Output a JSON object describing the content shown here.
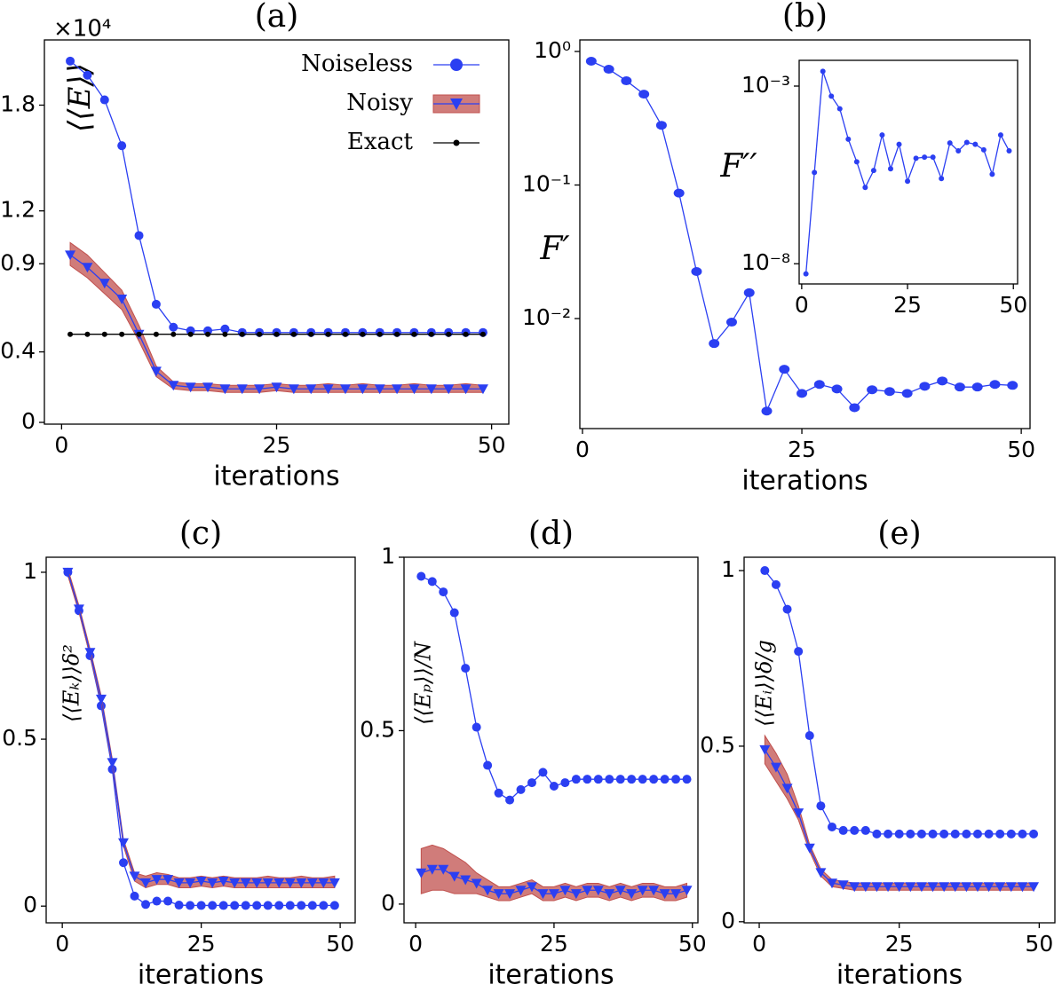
{
  "chart_data": [
    {
      "type": "line",
      "title": "(a)",
      "multiplier": "×10⁴",
      "ylabel": "⟨⟨E⟩⟩",
      "xlabel": "iterations",
      "x": [
        1,
        3,
        5,
        7,
        9,
        11,
        13,
        15,
        17,
        19,
        21,
        23,
        25,
        27,
        29,
        31,
        33,
        35,
        37,
        39,
        41,
        43,
        45,
        47,
        49
      ],
      "xlim": [
        -2,
        52
      ],
      "ylim": [
        -0.01,
        2.17
      ],
      "xticks": [
        0,
        25,
        50
      ],
      "yticks": [
        0,
        0.4,
        0.9,
        1.2,
        1.8
      ],
      "legend": "upper right",
      "series": [
        {
          "name": "Noiseless",
          "color": "#2b3ff2",
          "marker": "o",
          "values": [
            2.05,
            1.97,
            1.83,
            1.57,
            1.06,
            0.67,
            0.54,
            0.52,
            0.52,
            0.53,
            0.51,
            0.51,
            0.51,
            0.51,
            0.51,
            0.51,
            0.51,
            0.51,
            0.51,
            0.51,
            0.51,
            0.51,
            0.51,
            0.51,
            0.51
          ]
        },
        {
          "name": "Noisy",
          "color": "#2b3ff2",
          "marker": "v",
          "band_color": "#c0504d",
          "values": [
            0.95,
            0.88,
            0.79,
            0.7,
            0.5,
            0.29,
            0.21,
            0.2,
            0.2,
            0.19,
            0.19,
            0.19,
            0.2,
            0.19,
            0.19,
            0.19,
            0.19,
            0.19,
            0.19,
            0.19,
            0.19,
            0.19,
            0.19,
            0.19,
            0.19
          ],
          "lower": [
            0.89,
            0.82,
            0.73,
            0.64,
            0.46,
            0.26,
            0.19,
            0.18,
            0.18,
            0.17,
            0.17,
            0.17,
            0.18,
            0.17,
            0.17,
            0.17,
            0.17,
            0.17,
            0.17,
            0.17,
            0.17,
            0.17,
            0.17,
            0.17,
            0.17
          ],
          "upper": [
            1.02,
            0.95,
            0.85,
            0.75,
            0.55,
            0.32,
            0.23,
            0.22,
            0.22,
            0.21,
            0.21,
            0.21,
            0.22,
            0.21,
            0.21,
            0.22,
            0.21,
            0.22,
            0.21,
            0.21,
            0.22,
            0.21,
            0.21,
            0.22,
            0.21
          ]
        },
        {
          "name": "Exact",
          "color": "#000000",
          "marker": ".",
          "values": [
            0.5,
            0.5,
            0.5,
            0.5,
            0.5,
            0.5,
            0.5,
            0.5,
            0.5,
            0.5,
            0.5,
            0.5,
            0.5,
            0.5,
            0.5,
            0.5,
            0.5,
            0.5,
            0.5,
            0.5,
            0.5,
            0.5,
            0.5,
            0.5,
            0.5
          ]
        }
      ]
    },
    {
      "type": "line",
      "title": "(b)",
      "ylabel": "F′",
      "xlabel": "iterations",
      "yscale": "log",
      "x": [
        1,
        3,
        5,
        7,
        9,
        11,
        13,
        15,
        17,
        19,
        21,
        23,
        25,
        27,
        29,
        31,
        33,
        35,
        37,
        39,
        41,
        43,
        45,
        47,
        49
      ],
      "xlim": [
        -0.3,
        51
      ],
      "ylim": [
        0.0015,
        1.22
      ],
      "xticks": [
        0,
        25,
        50
      ],
      "yticks": [
        {
          "value": 1,
          "label": "10⁰"
        },
        {
          "value": 0.1,
          "label": "10⁻¹"
        },
        {
          "value": 0.01,
          "label": "10⁻²"
        }
      ],
      "series": [
        {
          "color": "#2b3ff2",
          "marker": "O",
          "values": [
            0.845,
            0.736,
            0.603,
            0.479,
            0.28,
            0.087,
            0.0225,
            0.0065,
            0.0094,
            0.0156,
            0.00203,
            0.00417,
            0.00275,
            0.00321,
            0.00297,
            0.00215,
            0.00293,
            0.00284,
            0.00275,
            0.00311,
            0.00341,
            0.00307,
            0.00307,
            0.00321,
            0.00316
          ]
        }
      ]
    },
    {
      "type": "line",
      "title": "(c)",
      "ylabel": "⟨⟨Eₖ⟩⟩δ²",
      "xlabel": "iterations",
      "x": [
        1,
        3,
        5,
        7,
        9,
        11,
        13,
        15,
        17,
        19,
        21,
        23,
        25,
        27,
        29,
        31,
        33,
        35,
        37,
        39,
        41,
        43,
        45,
        47,
        49
      ],
      "xlim": [
        -2.9,
        52.7
      ],
      "ylim": [
        -0.05,
        1.045
      ],
      "xticks": [
        0,
        25,
        50
      ],
      "yticks": [
        0,
        0.5,
        1.0
      ],
      "series": [
        {
          "color": "#2b3ff2",
          "marker": "o",
          "values": [
            1.0,
            0.885,
            0.75,
            0.6,
            0.41,
            0.13,
            0.03,
            0.005,
            0.015,
            0.015,
            0.003,
            0.002,
            0.002,
            0.002,
            0.002,
            0.002,
            0.002,
            0.002,
            0.002,
            0.002,
            0.002,
            0.002,
            0.002,
            0.002,
            0.002
          ]
        },
        {
          "color": "#2b3ff2",
          "marker": "v",
          "band_color": "#c0504d",
          "values": [
            1.0,
            0.89,
            0.76,
            0.62,
            0.43,
            0.19,
            0.09,
            0.07,
            0.08,
            0.08,
            0.07,
            0.07,
            0.075,
            0.07,
            0.075,
            0.07,
            0.07,
            0.07,
            0.07,
            0.07,
            0.07,
            0.07,
            0.07,
            0.07,
            0.07
          ],
          "lower": [
            0.99,
            0.88,
            0.75,
            0.61,
            0.42,
            0.18,
            0.075,
            0.055,
            0.065,
            0.065,
            0.055,
            0.055,
            0.06,
            0.055,
            0.06,
            0.055,
            0.055,
            0.055,
            0.055,
            0.055,
            0.055,
            0.055,
            0.055,
            0.055,
            0.055
          ],
          "upper": [
            1.01,
            0.9,
            0.77,
            0.63,
            0.44,
            0.2,
            0.1,
            0.09,
            0.1,
            0.095,
            0.085,
            0.085,
            0.09,
            0.085,
            0.09,
            0.085,
            0.085,
            0.085,
            0.09,
            0.085,
            0.085,
            0.09,
            0.085,
            0.085,
            0.09
          ]
        }
      ]
    },
    {
      "type": "line",
      "title": "(d)",
      "ylabel": "⟨⟨Eₚ⟩⟩/N",
      "xlabel": "iterations",
      "x": [
        1,
        3,
        5,
        7,
        9,
        11,
        13,
        15,
        17,
        19,
        21,
        23,
        25,
        27,
        29,
        31,
        33,
        35,
        37,
        39,
        41,
        43,
        45,
        47,
        49
      ],
      "xlim": [
        -2.1,
        51
      ],
      "ylim": [
        -0.054,
        1.0
      ],
      "xticks": [
        0,
        25,
        50
      ],
      "yticks": [
        0,
        0.5,
        1.0
      ],
      "series": [
        {
          "color": "#2b3ff2",
          "marker": "o",
          "values": [
            0.945,
            0.93,
            0.9,
            0.84,
            0.68,
            0.51,
            0.4,
            0.32,
            0.3,
            0.33,
            0.35,
            0.38,
            0.34,
            0.35,
            0.36,
            0.36,
            0.36,
            0.36,
            0.36,
            0.36,
            0.36,
            0.36,
            0.36,
            0.36,
            0.36
          ]
        },
        {
          "color": "#2b3ff2",
          "marker": "v",
          "band_color": "#c0504d",
          "values": [
            0.09,
            0.1,
            0.1,
            0.08,
            0.07,
            0.06,
            0.04,
            0.03,
            0.03,
            0.04,
            0.05,
            0.03,
            0.03,
            0.04,
            0.03,
            0.04,
            0.04,
            0.03,
            0.04,
            0.03,
            0.04,
            0.04,
            0.03,
            0.03,
            0.04
          ],
          "lower": [
            0.03,
            0.04,
            0.04,
            0.03,
            0.03,
            0.03,
            0.02,
            0.01,
            0.01,
            0.02,
            0.03,
            0.01,
            0.01,
            0.02,
            0.01,
            0.02,
            0.02,
            0.01,
            0.02,
            0.01,
            0.02,
            0.02,
            0.01,
            0.01,
            0.02
          ],
          "upper": [
            0.16,
            0.17,
            0.16,
            0.14,
            0.12,
            0.09,
            0.07,
            0.05,
            0.05,
            0.06,
            0.07,
            0.05,
            0.05,
            0.06,
            0.05,
            0.06,
            0.06,
            0.05,
            0.06,
            0.05,
            0.06,
            0.06,
            0.05,
            0.05,
            0.06
          ]
        }
      ]
    },
    {
      "type": "line",
      "title": "(e)",
      "ylabel": "⟨⟨Eᵢ⟩⟩δ/g",
      "xlabel": "iterations",
      "x": [
        1,
        3,
        5,
        7,
        9,
        11,
        13,
        15,
        17,
        19,
        21,
        23,
        25,
        27,
        29,
        31,
        33,
        35,
        37,
        39,
        41,
        43,
        45,
        47,
        49
      ],
      "xlim": [
        -2.7,
        52.8
      ],
      "ylim": [
        -0.003,
        1.038
      ],
      "xticks": [
        0,
        25,
        50
      ],
      "yticks": [
        0,
        0.5,
        1.0
      ],
      "series": [
        {
          "color": "#2b3ff2",
          "marker": "o",
          "values": [
            1.0,
            0.96,
            0.89,
            0.77,
            0.53,
            0.33,
            0.27,
            0.26,
            0.26,
            0.26,
            0.25,
            0.25,
            0.25,
            0.25,
            0.25,
            0.25,
            0.25,
            0.25,
            0.25,
            0.25,
            0.25,
            0.25,
            0.25,
            0.25,
            0.25
          ]
        },
        {
          "color": "#2b3ff2",
          "marker": "v",
          "band_color": "#c0504d",
          "values": [
            0.49,
            0.44,
            0.38,
            0.31,
            0.21,
            0.14,
            0.11,
            0.105,
            0.1,
            0.1,
            0.1,
            0.1,
            0.1,
            0.1,
            0.1,
            0.1,
            0.1,
            0.1,
            0.1,
            0.1,
            0.1,
            0.1,
            0.1,
            0.1,
            0.1
          ],
          "lower": [
            0.45,
            0.4,
            0.35,
            0.29,
            0.2,
            0.13,
            0.1,
            0.095,
            0.09,
            0.09,
            0.09,
            0.09,
            0.09,
            0.09,
            0.09,
            0.09,
            0.09,
            0.09,
            0.09,
            0.09,
            0.09,
            0.09,
            0.09,
            0.09,
            0.09
          ],
          "upper": [
            0.53,
            0.48,
            0.42,
            0.33,
            0.22,
            0.15,
            0.12,
            0.115,
            0.11,
            0.11,
            0.11,
            0.11,
            0.11,
            0.11,
            0.11,
            0.11,
            0.11,
            0.11,
            0.11,
            0.11,
            0.11,
            0.11,
            0.11,
            0.11,
            0.11
          ]
        }
      ]
    },
    {
      "type": "line",
      "ylabel": "F′′",
      "yscale": "log",
      "x": [
        1,
        3,
        5,
        7,
        9,
        11,
        13,
        15,
        17,
        19,
        21,
        23,
        25,
        27,
        29,
        31,
        33,
        35,
        37,
        39,
        41,
        43,
        45,
        47,
        49
      ],
      "xlim": [
        -0.6,
        51
      ],
      "ylim": [
        2.7e-09,
        0.0053
      ],
      "xticks": [
        0,
        25,
        50
      ],
      "yticks": [
        {
          "value": 0.001,
          "label": "10⁻³"
        },
        {
          "value": 1e-08,
          "label": "10⁻⁸"
        }
      ],
      "series": [
        {
          "color": "#2b3ff2",
          "marker": "s",
          "values": [
            5.2e-09,
            3.7e-06,
            0.0026,
            0.00052,
            0.00023,
            3.2e-05,
            7.4e-06,
            1.4e-06,
            4.2e-06,
            4.2e-05,
            4.7e-06,
            2.3e-05,
            2.1e-06,
            9.3e-06,
            1e-05,
            1e-05,
            2.5e-06,
            2.5e-05,
            1.5e-05,
            2.6e-05,
            2.3e-05,
            1.6e-05,
            3.3e-06,
            4.2e-05,
            1.5e-05
          ]
        }
      ]
    }
  ]
}
